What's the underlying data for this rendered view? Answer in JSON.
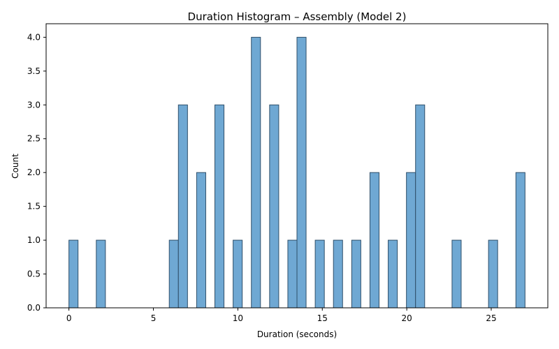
{
  "chart_data": {
    "type": "bar",
    "subtype": "histogram",
    "title": "Duration Histogram – Assembly (Model 2)",
    "xlabel": "Duration (seconds)",
    "ylabel": "Count",
    "xlim": [
      -1.35,
      28.35
    ],
    "ylim": [
      0,
      4.2
    ],
    "xticks": [
      0,
      5,
      10,
      15,
      20,
      25
    ],
    "yticks": [
      "0.0",
      "0.5",
      "1.0",
      "1.5",
      "2.0",
      "2.5",
      "3.0",
      "3.5",
      "4.0"
    ],
    "bin_width": 0.54,
    "grid": false,
    "bar_color": "#6fa8d3",
    "edge_color": "#2f4f6a",
    "bins": [
      {
        "start": 0.0,
        "count": 1
      },
      {
        "start": 1.62,
        "count": 1
      },
      {
        "start": 5.94,
        "count": 1
      },
      {
        "start": 6.48,
        "count": 3
      },
      {
        "start": 7.56,
        "count": 2
      },
      {
        "start": 8.64,
        "count": 3
      },
      {
        "start": 9.72,
        "count": 1
      },
      {
        "start": 10.8,
        "count": 4
      },
      {
        "start": 11.88,
        "count": 3
      },
      {
        "start": 12.96,
        "count": 1
      },
      {
        "start": 13.5,
        "count": 4
      },
      {
        "start": 14.58,
        "count": 1
      },
      {
        "start": 15.66,
        "count": 1
      },
      {
        "start": 16.74,
        "count": 1
      },
      {
        "start": 17.82,
        "count": 2
      },
      {
        "start": 18.9,
        "count": 1
      },
      {
        "start": 19.98,
        "count": 2
      },
      {
        "start": 20.52,
        "count": 3
      },
      {
        "start": 22.68,
        "count": 1
      },
      {
        "start": 24.84,
        "count": 1
      },
      {
        "start": 26.46,
        "count": 2
      }
    ]
  }
}
